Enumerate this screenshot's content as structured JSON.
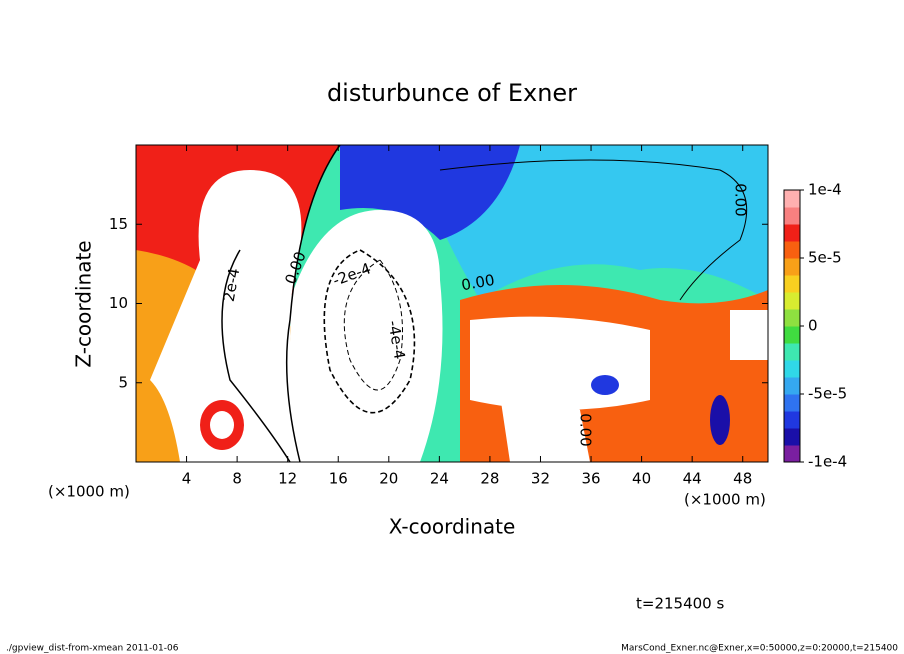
{
  "chart_data": {
    "type": "contour",
    "title": "disturbunce of Exner",
    "xlabel": "X-coordinate",
    "ylabel": "Z-coordinate",
    "x_unit": "(×1000 m)",
    "y_unit": "(×1000 m)",
    "xlim": [
      0,
      50
    ],
    "xticks": [
      4,
      8,
      12,
      16,
      20,
      24,
      28,
      32,
      36,
      40,
      44,
      48
    ],
    "ylim": [
      0,
      20
    ],
    "yticks": [
      5,
      10,
      15
    ],
    "colorbar": {
      "lim": [
        -0.0001,
        0.0001
      ],
      "ticks": [
        {
          "value": 0.0001,
          "label": "1e-4"
        },
        {
          "value": 5e-05,
          "label": "5e-5"
        },
        0,
        {
          "value": -5e-05,
          "label": "-5e-5"
        },
        {
          "value": -0.0001,
          "label": "-1e-4"
        }
      ],
      "colors": [
        "#7a1fa0",
        "#1a0fa8",
        "#2038e0",
        "#2f73f0",
        "#35a8f0",
        "#30d8e8",
        "#3ee8b0",
        "#40dc40",
        "#8ee040",
        "#d8ec30",
        "#f8d020",
        "#f8a018",
        "#f86010",
        "#f02018",
        "#f88080",
        "#ffb0b0"
      ]
    },
    "contour_labels": [
      "0.00",
      "2e-4",
      "-2e-4",
      "-4e-4",
      "0.00",
      "0.00",
      "0.00"
    ],
    "annotation": "t=215400 s",
    "footer_left": "./gpview_dist-from-xmean  2011-01-06",
    "footer_right": "MarsCond_Exner.nc@Exner,x=0:50000,z=0:20000,t=215400"
  }
}
